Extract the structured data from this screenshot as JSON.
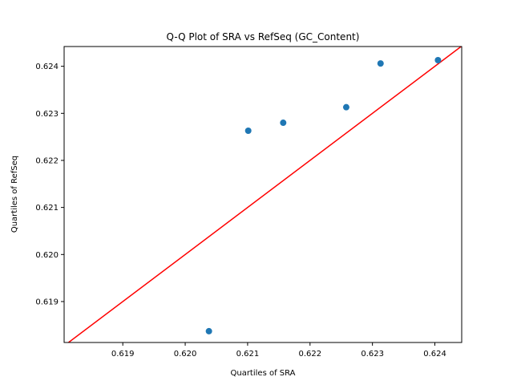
{
  "chart_data": {
    "type": "scatter",
    "title": "Q-Q Plot of SRA vs RefSeq (GC_Content)",
    "xlabel": "Quartiles of SRA",
    "ylabel": "Quartiles of RefSeq",
    "xlim": [
      0.61806,
      0.62443
    ],
    "ylim": [
      0.61813,
      0.62442
    ],
    "xticks": [
      0.619,
      0.62,
      0.621,
      0.622,
      0.623,
      0.624
    ],
    "xtick_labels": [
      "0.619",
      "0.620",
      "0.621",
      "0.622",
      "0.623",
      "0.624"
    ],
    "yticks": [
      0.619,
      0.62,
      0.621,
      0.622,
      0.623,
      0.624
    ],
    "ytick_labels": [
      "0.619",
      "0.620",
      "0.621",
      "0.622",
      "0.623",
      "0.624"
    ],
    "grid": false,
    "colors": {
      "points": "#1f77b4",
      "reference_line": "#ff0000"
    },
    "reference_line": "y = x",
    "points": [
      {
        "x": 0.62038,
        "y": 0.61837
      },
      {
        "x": 0.62101,
        "y": 0.62263
      },
      {
        "x": 0.62157,
        "y": 0.6228
      },
      {
        "x": 0.62258,
        "y": 0.62313
      },
      {
        "x": 0.62313,
        "y": 0.62406
      },
      {
        "x": 0.62405,
        "y": 0.62413
      }
    ]
  }
}
